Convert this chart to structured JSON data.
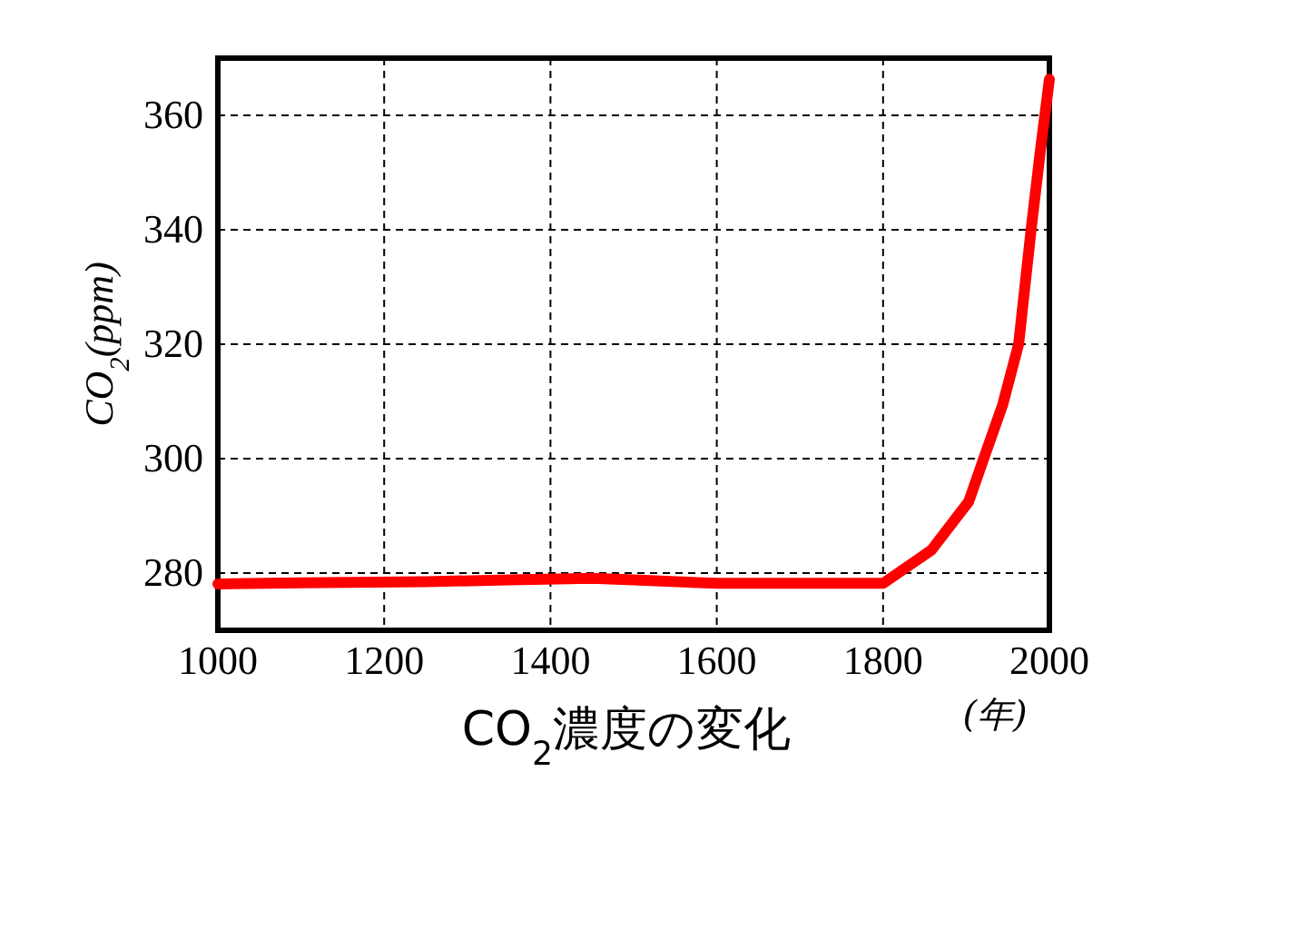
{
  "chart_data": {
    "type": "line",
    "title": "CO$_{2}$濃度の変化",
    "ylabel": "CO$_{2}$(ppm)",
    "annotations": [
      "(年)"
    ],
    "x": [
      1000,
      1100,
      1250,
      1350,
      1450,
      1500,
      1600,
      1800,
      1858,
      1903,
      1921,
      1944,
      1963,
      1978,
      1989,
      2000
    ],
    "series": [
      {
        "color": "#ff0000",
        "values": [
          278.1,
          278.3,
          278.5,
          278.8,
          279.1,
          278.8,
          278.2,
          278.2,
          284,
          292.5,
          300,
          309.5,
          320,
          340,
          353.6,
          366.3
        ]
      }
    ],
    "xlim": [
      1000,
      2000
    ],
    "ylim": [
      270,
      370
    ],
    "xticks": [
      1000,
      1200,
      1400,
      1600,
      1800,
      2000
    ],
    "yticks": [
      280,
      300,
      320,
      340,
      360
    ],
    "grid": true
  }
}
